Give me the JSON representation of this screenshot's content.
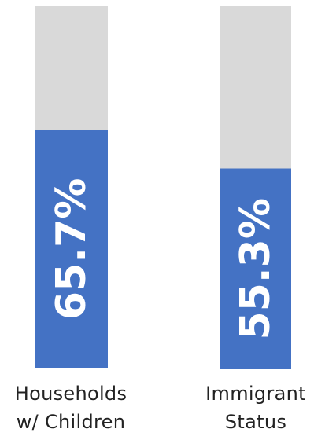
{
  "chart_data": {
    "type": "bar",
    "categories": [
      [
        "Households",
        "w/ Children"
      ],
      [
        "Immigrant",
        "Status"
      ]
    ],
    "values": [
      65.7,
      55.3
    ],
    "data_labels": [
      "65.7%",
      "55.3%"
    ],
    "ylim": [
      0,
      100
    ],
    "bar_color": "#4472C4",
    "track_color": "#D9D9D9",
    "label_color": "#FFFFFF"
  }
}
